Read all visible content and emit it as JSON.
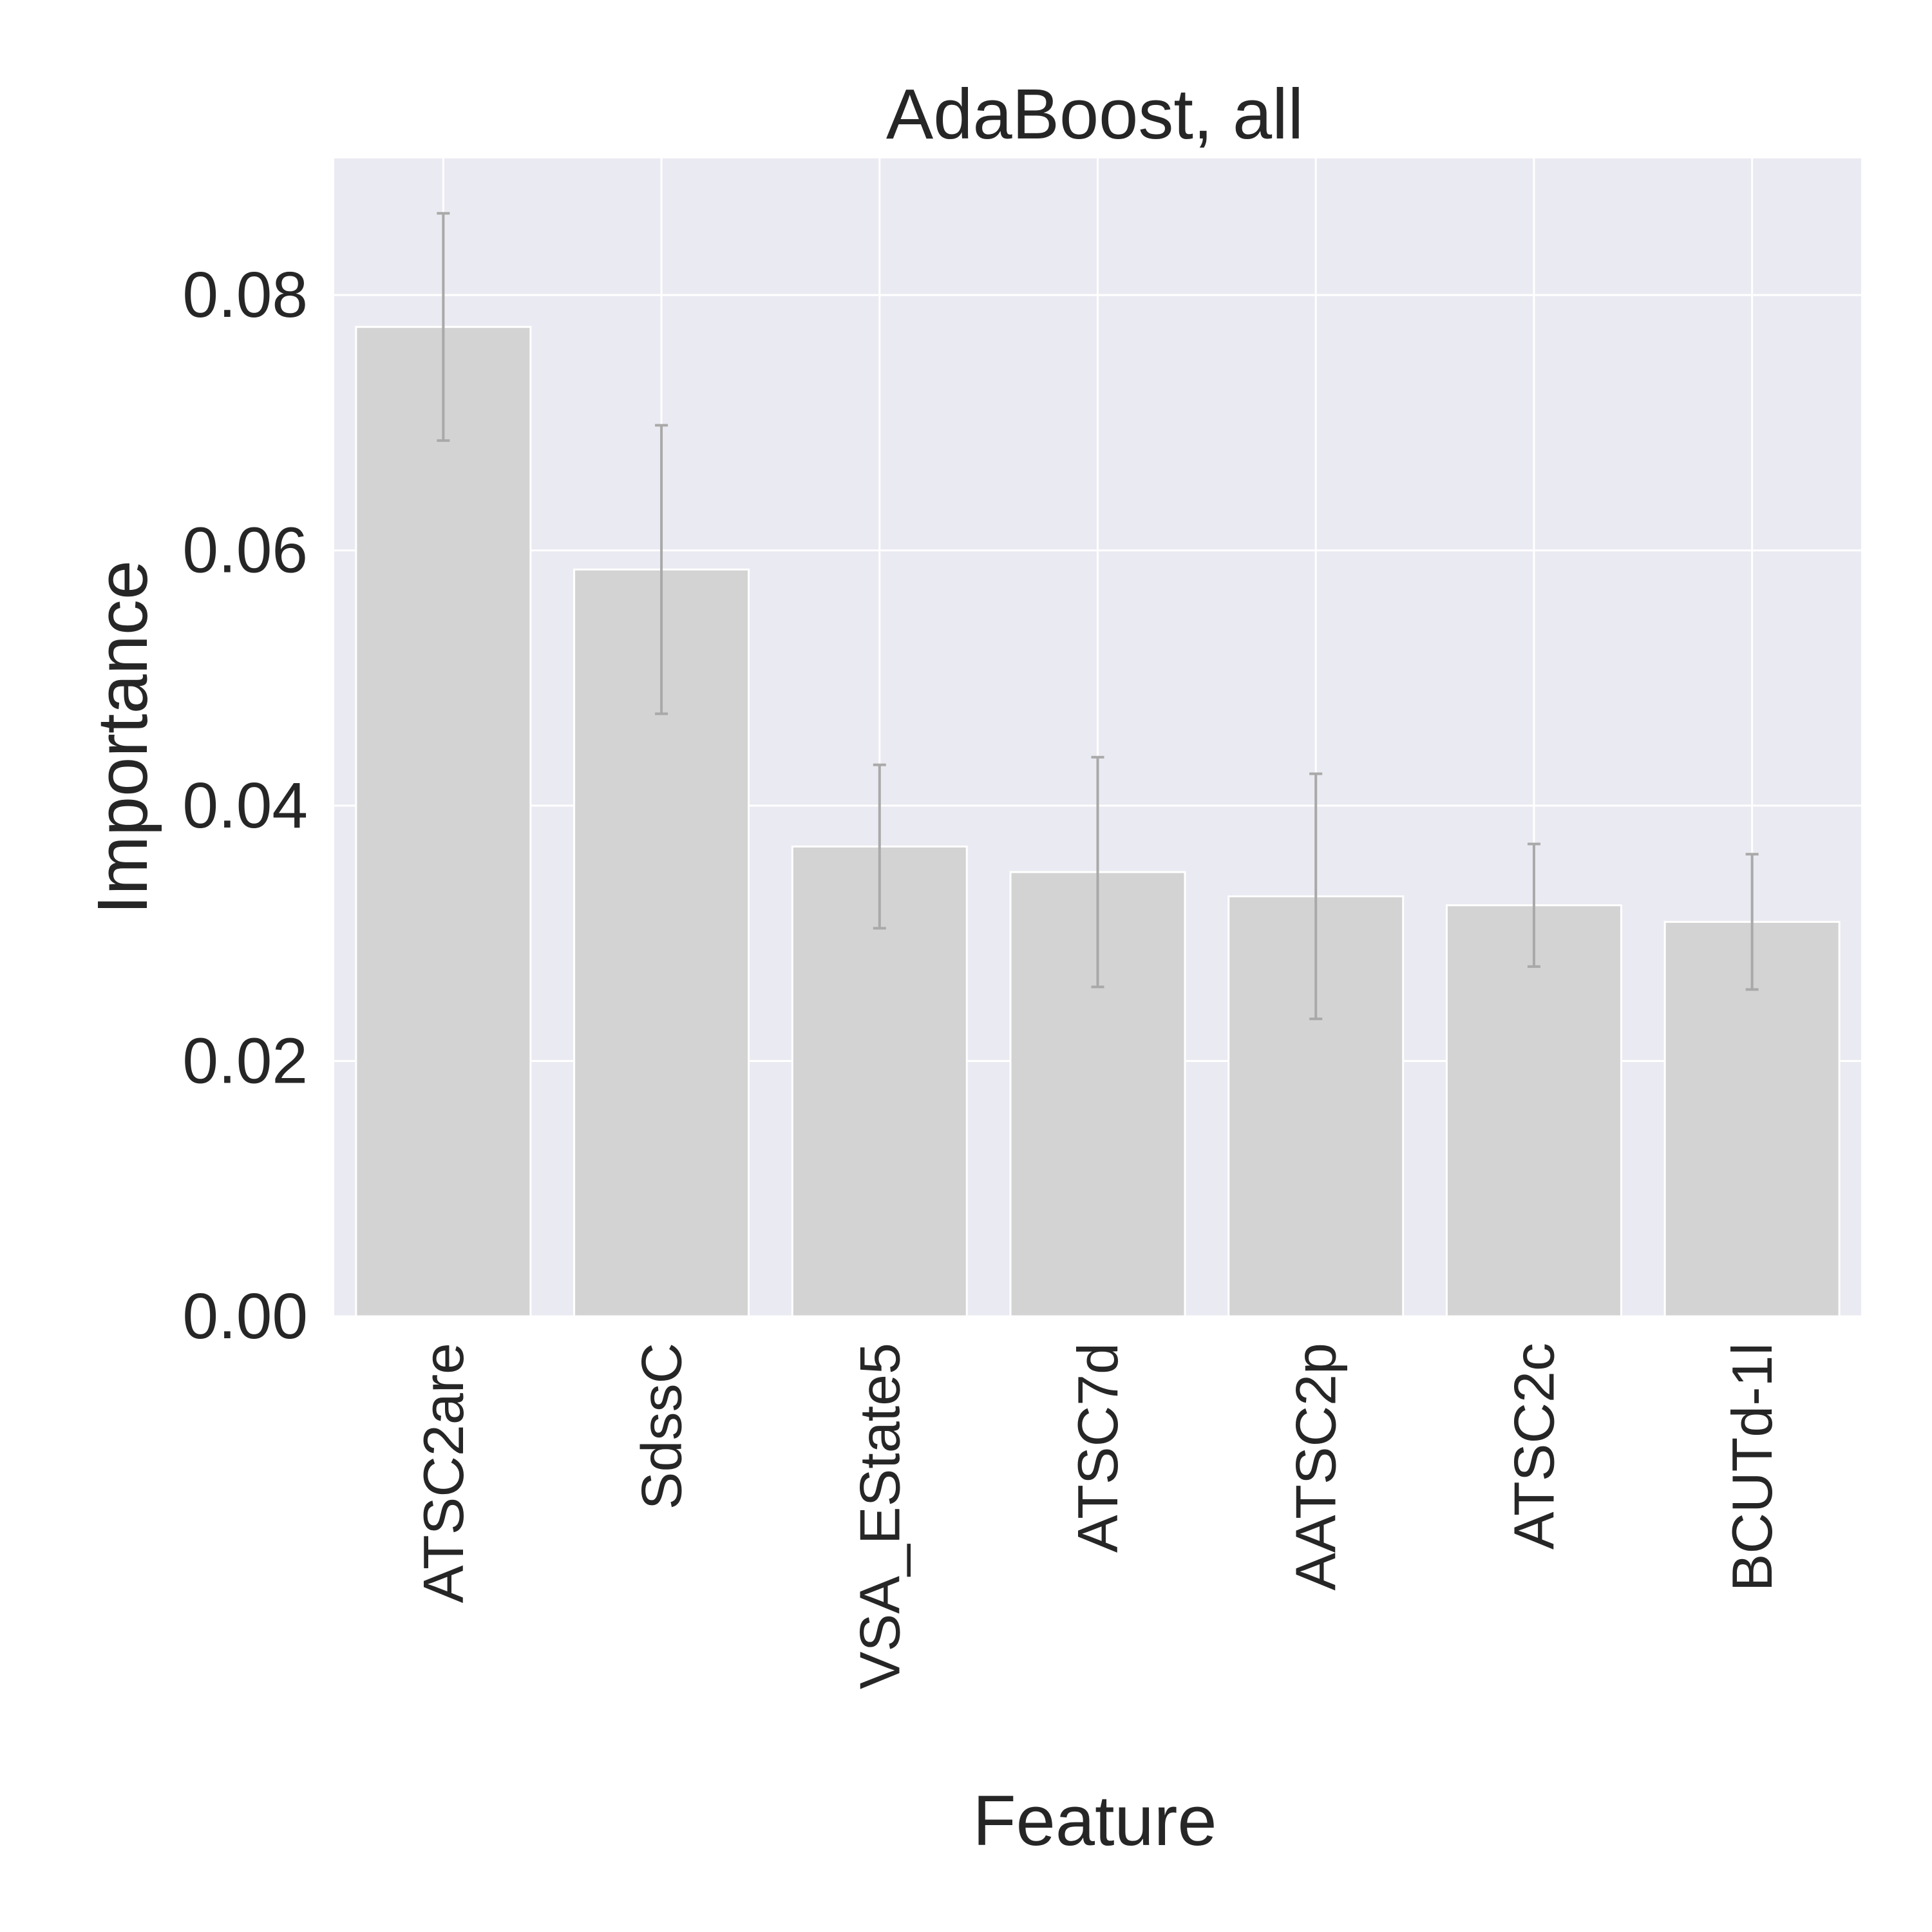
{
  "chart_data": {
    "type": "bar",
    "title": "AdaBoost, all",
    "xlabel": "Feature",
    "ylabel": "Importance",
    "categories": [
      "ATSC2are",
      "SdssC",
      "VSA_EState5",
      "ATSC7d",
      "AATSC2p",
      "ATSC2c",
      "BCUTd-1l"
    ],
    "values": [
      0.0775,
      0.0585,
      0.0368,
      0.0348,
      0.0329,
      0.0322,
      0.0309
    ],
    "error": [
      0.0089,
      0.0113,
      0.0064,
      0.009,
      0.0096,
      0.0048,
      0.0053
    ],
    "ylim": [
      0,
      0.0907
    ],
    "yticks": [
      "0.00",
      "0.02",
      "0.04",
      "0.06",
      "0.08"
    ],
    "ytick_values": [
      0,
      0.02,
      0.04,
      0.06,
      0.08
    ],
    "grid": true,
    "colors": {
      "background": "#eaeaf2",
      "bar": "#d3d3d3",
      "error": "#a9a9a9",
      "grid": "#ffffff"
    }
  }
}
